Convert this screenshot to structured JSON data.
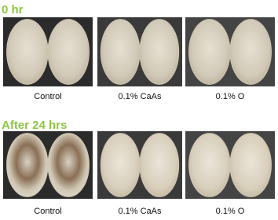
{
  "panels": [
    {
      "title": "0 hr",
      "labels": [
        "Control",
        "0.1% CaAs",
        "0.1% O"
      ]
    },
    {
      "title": "After 24 hrs",
      "labels": [
        "Control",
        "0.1% CaAs",
        "0.1% O"
      ]
    }
  ]
}
